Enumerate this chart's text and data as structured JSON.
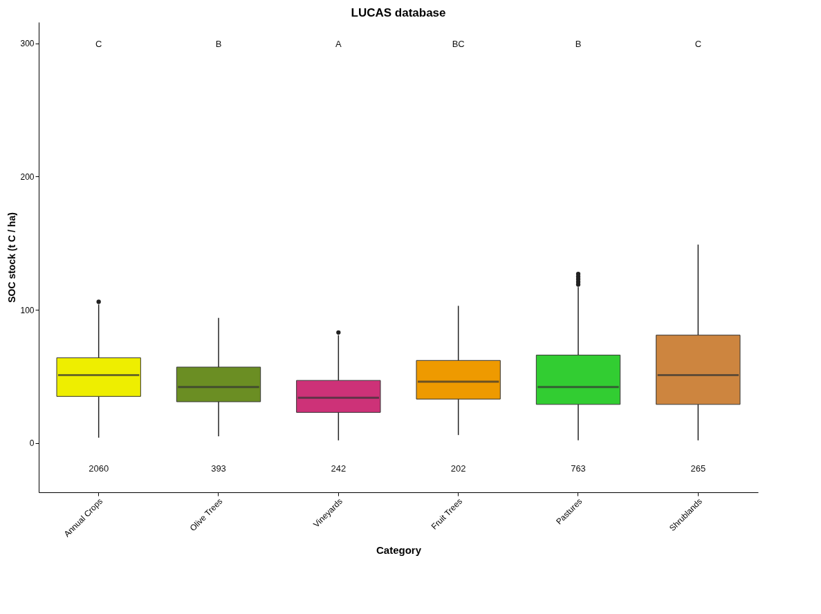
{
  "chart_data": {
    "type": "box",
    "title": "LUCAS database",
    "xlabel": "Category",
    "ylabel": "SOC stock (t C / ha)",
    "categories": [
      "Annual Crops",
      "Olive Trees",
      "Vineyards",
      "Fruit Trees",
      "Pastures",
      "Shrublands"
    ],
    "colors": [
      "#eeee00",
      "#6b8e23",
      "#cd3278",
      "#ee9a00",
      "#32cd32",
      "#cd853f"
    ],
    "boxes": [
      {
        "low": 4,
        "q1": 35,
        "median": 51,
        "q3": 64,
        "high": 104,
        "outliers": [
          106
        ]
      },
      {
        "low": 5,
        "q1": 31,
        "median": 42,
        "q3": 57,
        "high": 94
      },
      {
        "low": 2,
        "q1": 23,
        "median": 34,
        "q3": 47,
        "high": 81,
        "outliers": [
          83
        ]
      },
      {
        "low": 6,
        "q1": 33,
        "median": 46,
        "q3": 62,
        "high": 103
      },
      {
        "low": 2,
        "q1": 29,
        "median": 42,
        "q3": 66,
        "high": 117,
        "outliers": [
          119,
          121,
          123,
          125,
          127
        ]
      },
      {
        "low": 2,
        "q1": 29,
        "median": 51,
        "q3": 81,
        "high": 149
      }
    ],
    "ylim": [
      -37,
      316
    ],
    "yticks": [
      0,
      100,
      200,
      300
    ],
    "grid": false,
    "annotations": [
      "C",
      "B",
      "A",
      "BC",
      "B",
      "C",
      "2060",
      "393",
      "242",
      "202",
      "763",
      "265"
    ]
  }
}
